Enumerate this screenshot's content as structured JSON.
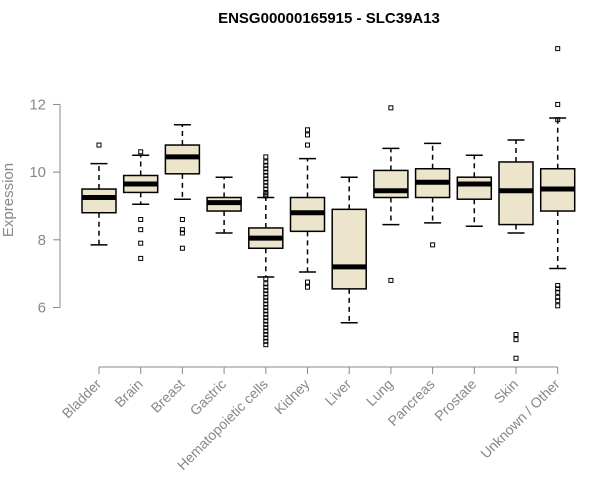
{
  "chart_data": {
    "type": "boxplot",
    "title": "ENSG00000165915 - SLC39A13",
    "ylabel": "Expression",
    "xlabel": "",
    "ylim": [
      4.3,
      14.2
    ],
    "yticks": [
      6,
      8,
      10,
      12
    ],
    "colors": {
      "box_fill": "#ede4cc",
      "box_stroke": "#000000",
      "median": "#000000",
      "axis": "#888888",
      "title": "#000000"
    },
    "categories": [
      "Bladder",
      "Brain",
      "Breast",
      "Gastric",
      "Hematopoietic cells",
      "Kidney",
      "Liver",
      "Lung",
      "Pancreas",
      "Prostate",
      "Skin",
      "Unknown / Other"
    ],
    "boxes": [
      {
        "category": "Bladder",
        "whisker_low": 7.85,
        "q1": 8.8,
        "median": 9.25,
        "q3": 9.5,
        "whisker_high": 10.25,
        "outliers": [
          10.8
        ]
      },
      {
        "category": "Brain",
        "whisker_low": 9.05,
        "q1": 9.4,
        "median": 9.65,
        "q3": 9.9,
        "whisker_high": 10.5,
        "outliers": [
          10.6,
          8.6,
          8.3,
          7.9,
          7.45
        ]
      },
      {
        "category": "Breast",
        "whisker_low": 9.2,
        "q1": 9.95,
        "median": 10.45,
        "q3": 10.8,
        "whisker_high": 11.4,
        "outliers": [
          8.6,
          8.3,
          8.2,
          7.75
        ]
      },
      {
        "category": "Gastric",
        "whisker_low": 8.2,
        "q1": 8.85,
        "median": 9.1,
        "q3": 9.25,
        "whisker_high": 9.85,
        "outliers": []
      },
      {
        "category": "Hematopoietic cells",
        "whisker_low": 6.9,
        "q1": 7.75,
        "median": 8.05,
        "q3": 8.35,
        "whisker_high": 9.25,
        "outliers": [
          10.45,
          10.3,
          10.2,
          10.1,
          10.0,
          9.9,
          9.8,
          9.7,
          9.6,
          9.5,
          9.4,
          9.35,
          9.3,
          6.85,
          6.7,
          6.6,
          6.5,
          6.4,
          6.3,
          6.2,
          6.1,
          6.0,
          5.9,
          5.8,
          5.7,
          5.6,
          5.5,
          5.4,
          5.3,
          5.2,
          5.1,
          5.0,
          4.9
        ]
      },
      {
        "category": "Kidney",
        "whisker_low": 7.05,
        "q1": 8.25,
        "median": 8.8,
        "q3": 9.25,
        "whisker_high": 10.4,
        "outliers": [
          11.25,
          11.1,
          10.8,
          6.75,
          6.6
        ]
      },
      {
        "category": "Liver",
        "whisker_low": 5.55,
        "q1": 6.55,
        "median": 7.2,
        "q3": 8.9,
        "whisker_high": 9.85,
        "outliers": []
      },
      {
        "category": "Lung",
        "whisker_low": 8.45,
        "q1": 9.25,
        "median": 9.45,
        "q3": 10.05,
        "whisker_high": 10.7,
        "outliers": [
          11.9,
          6.8
        ]
      },
      {
        "category": "Pancreas",
        "whisker_low": 8.5,
        "q1": 9.25,
        "median": 9.7,
        "q3": 10.1,
        "whisker_high": 10.85,
        "outliers": [
          7.85
        ]
      },
      {
        "category": "Prostate",
        "whisker_low": 8.4,
        "q1": 9.2,
        "median": 9.65,
        "q3": 9.85,
        "whisker_high": 10.5,
        "outliers": []
      },
      {
        "category": "Skin",
        "whisker_low": 8.2,
        "q1": 8.45,
        "median": 9.45,
        "q3": 10.3,
        "whisker_high": 10.95,
        "outliers": [
          5.2,
          5.05,
          4.5
        ]
      },
      {
        "category": "Unknown / Other",
        "whisker_low": 7.15,
        "q1": 8.85,
        "median": 9.5,
        "q3": 10.1,
        "whisker_high": 11.6,
        "outliers": [
          13.65,
          12.0,
          11.55,
          6.65,
          6.55,
          6.45,
          6.3,
          6.2,
          6.05
        ]
      }
    ]
  }
}
